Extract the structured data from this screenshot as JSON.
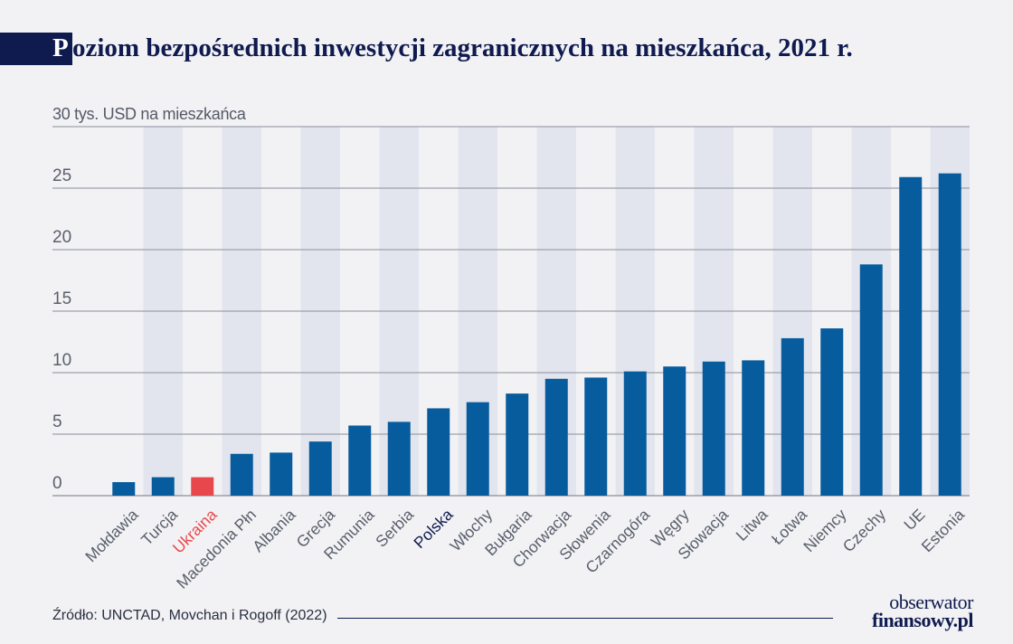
{
  "title_initial": "P",
  "title_rest": "oziom bezpośrednich inwestycji zagranicznych na mieszkańca, 2021 r.",
  "source": "Źródło: UNCTAD, Movchan i Rogoff (2022)",
  "logo": {
    "line1": "obserwator",
    "line2": "finansowy.pl"
  },
  "colors": {
    "bar": "#075c9e",
    "highlight_bar": "#e8484b",
    "highlight_label": "#e8484b",
    "poland_label": "#0f1a4e",
    "label": "#5a5f6b",
    "band": "#e2e5ee",
    "grid": "#8a8e9a"
  },
  "chart_data": {
    "type": "bar",
    "title": "Poziom bezpośrednich inwestycji zagranicznych na mieszkańca, 2021 r.",
    "ylabel": "30 tys. USD na mieszkańca",
    "ylim": [
      0,
      30
    ],
    "yticks": [
      "0",
      "5",
      "10",
      "15",
      "20",
      "25"
    ],
    "grid": true,
    "categories": [
      "Mołdawia",
      "Turcja",
      "Ukraina",
      "Macedonia Płn",
      "Albania",
      "Grecja",
      "Rumunia",
      "Serbia",
      "Polska",
      "Włochy",
      "Bułgaria",
      "Chorwacja",
      "Słowenia",
      "Czarnogóra",
      "Węgry",
      "Słowacja",
      "Litwa",
      "Łotwa",
      "Niemcy",
      "Czechy",
      "UE",
      "Estonia"
    ],
    "values": [
      1.1,
      1.5,
      1.5,
      3.4,
      3.5,
      4.4,
      5.7,
      6.0,
      7.1,
      7.6,
      8.3,
      9.5,
      9.6,
      10.1,
      10.5,
      10.9,
      11.0,
      12.8,
      13.6,
      18.8,
      25.9,
      26.2
    ],
    "highlight": "Ukraina",
    "emphasis": "Polska"
  }
}
